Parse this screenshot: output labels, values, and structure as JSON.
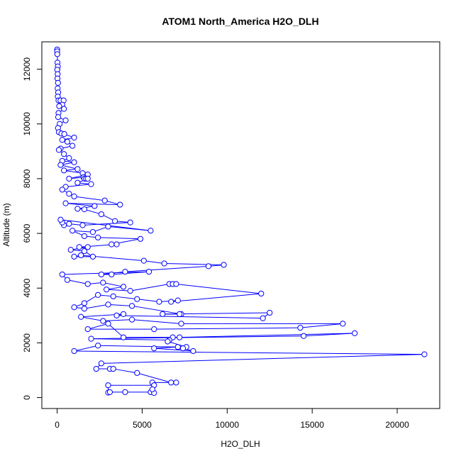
{
  "chart_data": {
    "type": "scatter",
    "title": "ATOM1 North_America H2O_DLH",
    "xlabel": "H2O_DLH",
    "ylabel": "Altitude (m)",
    "xlim": [
      -900,
      22500
    ],
    "ylim": [
      -400,
      13000
    ],
    "xticks": [
      0,
      5000,
      10000,
      15000,
      20000
    ],
    "yticks": [
      0,
      2000,
      4000,
      6000,
      8000,
      10000,
      12000
    ],
    "grid": false,
    "legend": "none",
    "series_color": "#0000ff",
    "marker": "open-circle",
    "connect_points": true,
    "points": [
      [
        0,
        12720
      ],
      [
        0,
        12650
      ],
      [
        10,
        12550
      ],
      [
        20,
        12240
      ],
      [
        40,
        12100
      ],
      [
        10,
        11980
      ],
      [
        30,
        11820
      ],
      [
        20,
        11660
      ],
      [
        50,
        11500
      ],
      [
        30,
        11300
      ],
      [
        60,
        11150
      ],
      [
        40,
        11000
      ],
      [
        80,
        10860
      ],
      [
        200,
        10860
      ],
      [
        380,
        10860
      ],
      [
        300,
        10700
      ],
      [
        120,
        10650
      ],
      [
        400,
        10550
      ],
      [
        80,
        10400
      ],
      [
        60,
        10250
      ],
      [
        500,
        10130
      ],
      [
        150,
        10000
      ],
      [
        50,
        9850
      ],
      [
        100,
        9700
      ],
      [
        250,
        9650
      ],
      [
        420,
        9630
      ],
      [
        1000,
        9500
      ],
      [
        300,
        9420
      ],
      [
        600,
        9350
      ],
      [
        900,
        9200
      ],
      [
        200,
        9100
      ],
      [
        100,
        9050
      ],
      [
        400,
        8900
      ],
      [
        700,
        8750
      ],
      [
        300,
        8650
      ],
      [
        1000,
        8600
      ],
      [
        200,
        8500
      ],
      [
        1200,
        8350
      ],
      [
        400,
        8300
      ],
      [
        1500,
        8200
      ],
      [
        1800,
        8150
      ],
      [
        700,
        8000
      ],
      [
        1550,
        8050
      ],
      [
        1600,
        8000
      ],
      [
        1700,
        8000
      ],
      [
        1800,
        8000
      ],
      [
        1200,
        7850
      ],
      [
        2000,
        7800
      ],
      [
        500,
        7700
      ],
      [
        300,
        7600
      ],
      [
        700,
        7450
      ],
      [
        1000,
        7350
      ],
      [
        2800,
        7200
      ],
      [
        3700,
        7050
      ],
      [
        500,
        7100
      ],
      [
        2200,
        7000
      ],
      [
        1200,
        6900
      ],
      [
        1600,
        6880
      ],
      [
        2600,
        6700
      ],
      [
        3400,
        6450
      ],
      [
        4300,
        6400
      ],
      [
        1500,
        6300
      ],
      [
        700,
        6350
      ],
      [
        400,
        6300
      ],
      [
        300,
        6400
      ],
      [
        200,
        6500
      ],
      [
        5500,
        6100
      ],
      [
        3000,
        6250
      ],
      [
        2100,
        6050
      ],
      [
        900,
        6100
      ],
      [
        1600,
        5900
      ],
      [
        2400,
        5850
      ],
      [
        4900,
        5800
      ],
      [
        3200,
        5600
      ],
      [
        3500,
        5600
      ],
      [
        1300,
        5500
      ],
      [
        1800,
        5500
      ],
      [
        800,
        5400
      ],
      [
        1600,
        5350
      ],
      [
        2100,
        5150
      ],
      [
        1000,
        5150
      ],
      [
        1400,
        5200
      ],
      [
        5100,
        5000
      ],
      [
        6300,
        4900
      ],
      [
        9800,
        4850
      ],
      [
        8900,
        4800
      ],
      [
        4000,
        4600
      ],
      [
        2600,
        4500
      ],
      [
        3200,
        4500
      ],
      [
        5400,
        4600
      ],
      [
        300,
        4500
      ],
      [
        600,
        4300
      ],
      [
        1800,
        4150
      ],
      [
        2700,
        4200
      ],
      [
        3900,
        4050
      ],
      [
        2900,
        3950
      ],
      [
        4300,
        3900
      ],
      [
        6600,
        4150
      ],
      [
        6800,
        4150
      ],
      [
        7000,
        4150
      ],
      [
        12000,
        3800
      ],
      [
        6700,
        3500
      ],
      [
        7100,
        3550
      ],
      [
        6000,
        3500
      ],
      [
        4700,
        3600
      ],
      [
        3300,
        3700
      ],
      [
        2400,
        3750
      ],
      [
        1600,
        3450
      ],
      [
        1000,
        3300
      ],
      [
        1600,
        3250
      ],
      [
        3000,
        3400
      ],
      [
        4400,
        3350
      ],
      [
        7300,
        3050
      ],
      [
        7200,
        3050
      ],
      [
        6200,
        3050
      ],
      [
        12500,
        3100
      ],
      [
        12100,
        2900
      ],
      [
        3500,
        3000
      ],
      [
        3900,
        3050
      ],
      [
        1400,
        2950
      ],
      [
        2700,
        2800
      ],
      [
        4400,
        2850
      ],
      [
        7300,
        2700
      ],
      [
        16800,
        2700
      ],
      [
        14300,
        2550
      ],
      [
        5700,
        2500
      ],
      [
        1800,
        2500
      ],
      [
        3000,
        2700
      ],
      [
        3900,
        2200
      ],
      [
        6800,
        2200
      ],
      [
        7200,
        2200
      ],
      [
        17500,
        2350
      ],
      [
        14500,
        2250
      ],
      [
        2000,
        2150
      ],
      [
        6600,
        2100
      ],
      [
        6500,
        2050
      ],
      [
        7600,
        1850
      ],
      [
        7400,
        1800
      ],
      [
        8000,
        1700
      ],
      [
        5700,
        1800
      ],
      [
        7100,
        1850
      ],
      [
        2400,
        1900
      ],
      [
        1000,
        1700
      ],
      [
        21600,
        1580
      ],
      [
        2600,
        1250
      ],
      [
        2300,
        1050
      ],
      [
        3100,
        1050
      ],
      [
        3300,
        1050
      ],
      [
        4700,
        900
      ],
      [
        6700,
        550
      ],
      [
        7000,
        550
      ],
      [
        5600,
        550
      ],
      [
        5700,
        450
      ],
      [
        3000,
        450
      ],
      [
        3000,
        180
      ],
      [
        3100,
        200
      ],
      [
        4000,
        200
      ],
      [
        5500,
        200
      ],
      [
        5700,
        170
      ],
      [
        5600,
        300
      ]
    ]
  }
}
